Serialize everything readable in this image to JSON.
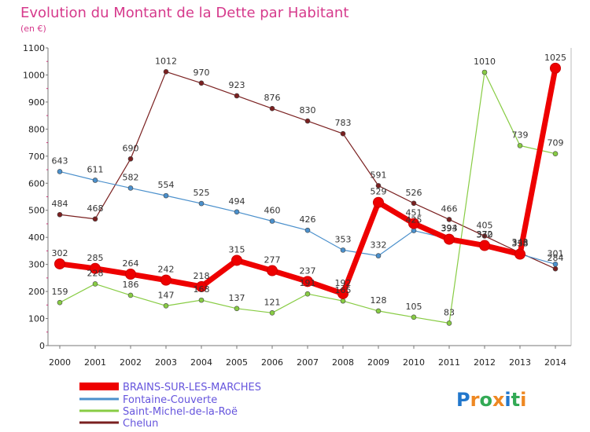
{
  "chart_data": {
    "type": "line",
    "title": "Evolution du Montant de la Dette par Habitant",
    "subtitle": "(en €)",
    "x": [
      2000,
      2001,
      2002,
      2003,
      2004,
      2005,
      2006,
      2007,
      2008,
      2009,
      2010,
      2011,
      2012,
      2013,
      2014
    ],
    "yticks": [
      0,
      100,
      200,
      300,
      400,
      500,
      600,
      700,
      800,
      900,
      1000,
      1100
    ],
    "ylim": [
      0,
      1100
    ],
    "grid": false,
    "legend_position": "bottom-left",
    "series": [
      {
        "name": "BRAINS-SUR-LES-MARCHES",
        "color": "#ee0000",
        "values": [
          302,
          285,
          264,
          242,
          218,
          315,
          277,
          237,
          192,
          529,
          451,
          393,
          370,
          338,
          1025
        ]
      },
      {
        "name": "Fontaine-Couverte",
        "color": "#4b90cc",
        "values": [
          643,
          611,
          582,
          554,
          525,
          494,
          460,
          426,
          353,
          332,
          425,
          394,
          372,
          338,
          301
        ]
      },
      {
        "name": "Saint-Michel-de-la-Roë",
        "color": "#88cc44",
        "values": [
          159,
          228,
          186,
          147,
          168,
          137,
          121,
          191,
          165,
          128,
          105,
          83,
          1010,
          739,
          709
        ]
      },
      {
        "name": "Chelun",
        "color": "#7a2020",
        "values": [
          484,
          468,
          690,
          1012,
          970,
          923,
          876,
          830,
          783,
          591,
          526,
          466,
          405,
          343,
          284
        ]
      }
    ]
  },
  "logo": {
    "letters": [
      "P",
      "r",
      "o",
      "x",
      "i",
      "t",
      "i"
    ],
    "colors": [
      "#2277cc",
      "#ee8822",
      "#33aa55",
      "#ee8822",
      "#2277cc",
      "#33aa55",
      "#ee8822"
    ]
  }
}
